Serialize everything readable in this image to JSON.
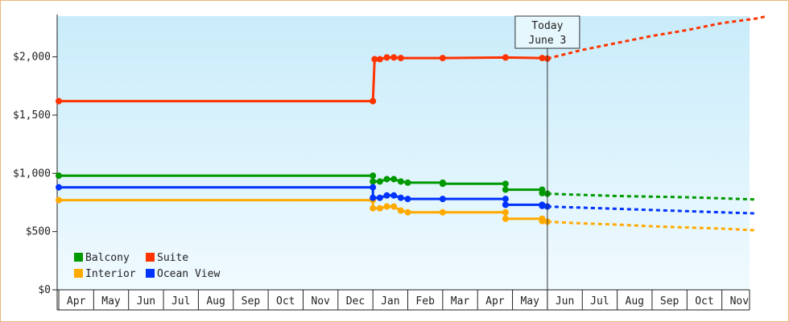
{
  "chart_data": {
    "type": "line",
    "title": "",
    "xlabel": "",
    "ylabel": "",
    "ylim": [
      0,
      2350
    ],
    "y_ticks": [
      "$0",
      "$500",
      "$1,000",
      "$1,500",
      "$2,000"
    ],
    "y_tick_values": [
      0,
      500,
      1000,
      1500,
      2000
    ],
    "x_months": [
      "Apr",
      "May",
      "Jun",
      "Jul",
      "Aug",
      "Sep",
      "Oct",
      "Nov",
      "Dec",
      "Jan",
      "Feb",
      "Mar",
      "Apr",
      "May",
      "Jun",
      "Jul",
      "Aug",
      "Sep",
      "Oct",
      "Nov"
    ],
    "grid": false,
    "legend_placement": "bottom-left",
    "today_marker": {
      "line1": "Today",
      "line2": "June 3",
      "month_index": 14.0
    },
    "series": [
      {
        "name": "Balcony",
        "color": "#009900",
        "actual": [
          [
            0,
            980
          ],
          [
            9,
            980
          ],
          [
            9,
            930
          ],
          [
            9.2,
            930
          ],
          [
            9.4,
            950
          ],
          [
            9.6,
            950
          ],
          [
            9.8,
            930
          ],
          [
            10,
            920
          ],
          [
            11,
            920
          ],
          [
            11,
            910
          ],
          [
            12.8,
            910
          ],
          [
            12.8,
            860
          ],
          [
            13.85,
            860
          ],
          [
            13.85,
            830
          ],
          [
            14.0,
            825
          ]
        ],
        "markers": [
          0,
          9,
          9,
          9.2,
          9.4,
          9.6,
          9.8,
          10,
          11,
          11,
          12.8,
          12.8,
          13.85,
          13.85,
          14.0
        ],
        "forecast": [
          [
            14.0,
            825
          ],
          [
            14.5,
            820
          ],
          [
            15,
            815
          ],
          [
            15.5,
            810
          ],
          [
            16,
            805
          ],
          [
            17,
            800
          ],
          [
            18,
            795
          ],
          [
            19,
            785
          ],
          [
            19.5,
            780
          ],
          [
            20,
            775
          ]
        ]
      },
      {
        "name": "Suite",
        "color": "#ff3300",
        "actual": [
          [
            0,
            1620
          ],
          [
            9,
            1620
          ],
          [
            9.05,
            1980
          ],
          [
            9.2,
            1980
          ],
          [
            9.4,
            1995
          ],
          [
            9.6,
            1995
          ],
          [
            9.8,
            1990
          ],
          [
            11,
            1990
          ],
          [
            12.8,
            1995
          ],
          [
            13.85,
            1990
          ],
          [
            14.0,
            1985
          ]
        ],
        "markers": [
          0,
          9,
          9.05,
          9.2,
          9.4,
          9.6,
          9.8,
          11,
          12.8,
          13.85,
          14.0
        ],
        "forecast": [
          [
            14.0,
            1985
          ],
          [
            15,
            2060
          ],
          [
            16,
            2120
          ],
          [
            17,
            2180
          ],
          [
            18,
            2230
          ],
          [
            19,
            2290
          ],
          [
            20,
            2330
          ],
          [
            20.3,
            2350
          ]
        ]
      },
      {
        "name": "Interior",
        "color": "#ffaa00",
        "actual": [
          [
            0,
            770
          ],
          [
            9,
            770
          ],
          [
            9,
            700
          ],
          [
            9.2,
            700
          ],
          [
            9.4,
            715
          ],
          [
            9.6,
            715
          ],
          [
            9.8,
            680
          ],
          [
            10,
            665
          ],
          [
            11,
            665
          ],
          [
            12.8,
            665
          ],
          [
            12.8,
            610
          ],
          [
            13.85,
            610
          ],
          [
            13.85,
            590
          ],
          [
            14.0,
            585
          ]
        ],
        "markers": [
          0,
          9,
          9,
          9.2,
          9.4,
          9.6,
          9.8,
          10,
          11,
          12.8,
          12.8,
          13.85,
          13.85,
          14.0
        ],
        "forecast": [
          [
            14.0,
            585
          ],
          [
            15,
            570
          ],
          [
            16,
            560
          ],
          [
            17,
            545
          ],
          [
            18,
            535
          ],
          [
            19,
            525
          ],
          [
            20,
            510
          ]
        ]
      },
      {
        "name": "Ocean View",
        "color": "#0033ff",
        "actual": [
          [
            0,
            880
          ],
          [
            9,
            880
          ],
          [
            9,
            790
          ],
          [
            9.2,
            790
          ],
          [
            9.4,
            810
          ],
          [
            9.6,
            810
          ],
          [
            9.8,
            790
          ],
          [
            10,
            780
          ],
          [
            11,
            780
          ],
          [
            12.8,
            780
          ],
          [
            12.8,
            730
          ],
          [
            13.85,
            730
          ],
          [
            13.85,
            720
          ],
          [
            14.0,
            715
          ]
        ],
        "markers": [
          0,
          9,
          9,
          9.2,
          9.4,
          9.6,
          9.8,
          10,
          11,
          12.8,
          12.8,
          13.85,
          13.85,
          14.0
        ],
        "forecast": [
          [
            14.0,
            715
          ],
          [
            15,
            705
          ],
          [
            16,
            695
          ],
          [
            17,
            685
          ],
          [
            18,
            675
          ],
          [
            19,
            665
          ],
          [
            20,
            655
          ]
        ]
      }
    ],
    "legend": [
      {
        "name": "Balcony",
        "color": "#009900"
      },
      {
        "name": "Suite",
        "color": "#ff3300"
      },
      {
        "name": "Interior",
        "color": "#ffaa00"
      },
      {
        "name": "Ocean View",
        "color": "#0033ff"
      }
    ]
  }
}
